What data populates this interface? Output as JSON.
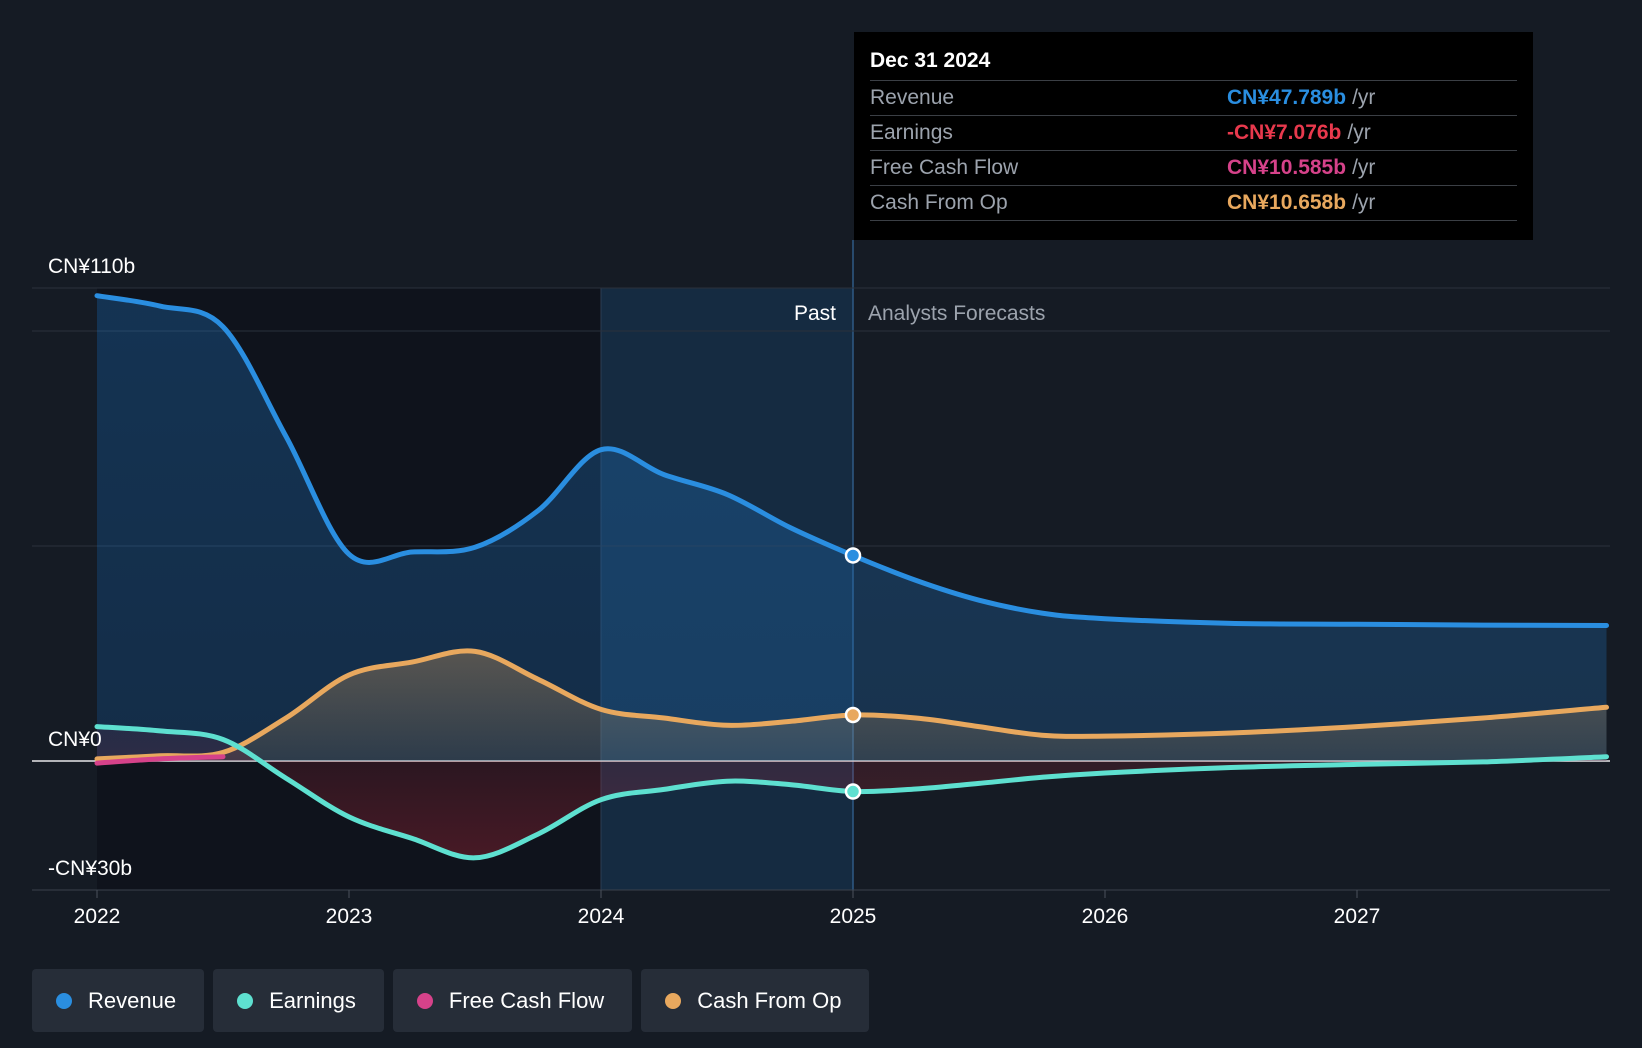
{
  "chart_data": {
    "type": "area",
    "title": "",
    "x_ticks": [
      "2022",
      "2023",
      "2024",
      "2025",
      "2026",
      "2027"
    ],
    "y_tick_labels": [
      "CN¥110b",
      "CN¥0",
      "-CN¥30b"
    ],
    "y_range": [
      -30,
      110
    ],
    "y_unit": "CN¥ billions",
    "past_label": "Past",
    "forecast_label": "Analysts Forecasts",
    "divider_x": 2025.0,
    "grid": true,
    "legend_position": "bottom",
    "series": [
      {
        "name": "Revenue",
        "color": "#2a8ee0",
        "x": [
          2022.0,
          2022.25,
          2022.5,
          2022.75,
          2023.0,
          2023.25,
          2023.5,
          2023.75,
          2024.0,
          2024.25,
          2024.5,
          2024.75,
          2025.0,
          2025.25,
          2025.5,
          2025.75,
          2026.0,
          2026.5,
          2027.0,
          2027.5,
          2027.99
        ],
        "y": [
          108.2,
          105.8,
          101.0,
          75.5,
          48.1,
          48.6,
          49.7,
          58.2,
          72.4,
          66.6,
          62.0,
          54.3,
          47.8,
          42.0,
          37.4,
          34.4,
          33.1,
          32.0,
          31.8,
          31.6,
          31.5
        ]
      },
      {
        "name": "Earnings",
        "color": "#5ee0d0",
        "x": [
          2022.0,
          2022.25,
          2022.5,
          2022.75,
          2023.0,
          2023.25,
          2023.5,
          2023.75,
          2024.0,
          2024.25,
          2024.5,
          2024.75,
          2025.0,
          2025.25,
          2025.5,
          2025.75,
          2026.0,
          2026.5,
          2027.0,
          2027.5,
          2027.99
        ],
        "y": [
          8.0,
          7.0,
          5.0,
          -4.0,
          -13.0,
          -18.0,
          -22.5,
          -17.0,
          -9.0,
          -6.6,
          -4.7,
          -5.5,
          -7.1,
          -6.5,
          -5.2,
          -3.8,
          -2.8,
          -1.5,
          -0.8,
          -0.2,
          1.0
        ]
      },
      {
        "name": "Free Cash Flow",
        "color": "#d6428a",
        "x": [
          2022.0,
          2022.25,
          2022.5
        ],
        "y": [
          -0.5,
          0.5,
          1.0
        ]
      },
      {
        "name": "Cash From Op",
        "color": "#e8a85e",
        "x": [
          2022.0,
          2022.25,
          2022.5,
          2022.75,
          2023.0,
          2023.25,
          2023.5,
          2023.75,
          2024.0,
          2024.25,
          2024.5,
          2024.75,
          2025.0,
          2025.25,
          2025.5,
          2025.75,
          2026.0,
          2026.5,
          2027.0,
          2027.5,
          2027.99
        ],
        "y": [
          0.5,
          1.2,
          2.0,
          10.0,
          20.0,
          23.0,
          25.5,
          19.0,
          12.0,
          10.0,
          8.3,
          9.2,
          10.7,
          10.0,
          8.0,
          6.0,
          5.8,
          6.5,
          8.0,
          10.0,
          12.5
        ]
      }
    ]
  },
  "tooltip": {
    "date": "Dec 31 2024",
    "rows": [
      {
        "label": "Revenue",
        "value": "CN¥47.789b",
        "unit": "/yr",
        "color": "#2a8ee0"
      },
      {
        "label": "Earnings",
        "value": "-CN¥7.076b",
        "unit": "/yr",
        "color": "#e8394d"
      },
      {
        "label": "Free Cash Flow",
        "value": "CN¥10.585b",
        "unit": "/yr",
        "color": "#d6428a"
      },
      {
        "label": "Cash From Op",
        "value": "CN¥10.658b",
        "unit": "/yr",
        "color": "#e8a85e"
      }
    ]
  },
  "legend": [
    {
      "label": "Revenue",
      "color": "#2a8ee0"
    },
    {
      "label": "Earnings",
      "color": "#5ee0d0"
    },
    {
      "label": "Free Cash Flow",
      "color": "#d6428a"
    },
    {
      "label": "Cash From Op",
      "color": "#e8a85e"
    }
  ]
}
